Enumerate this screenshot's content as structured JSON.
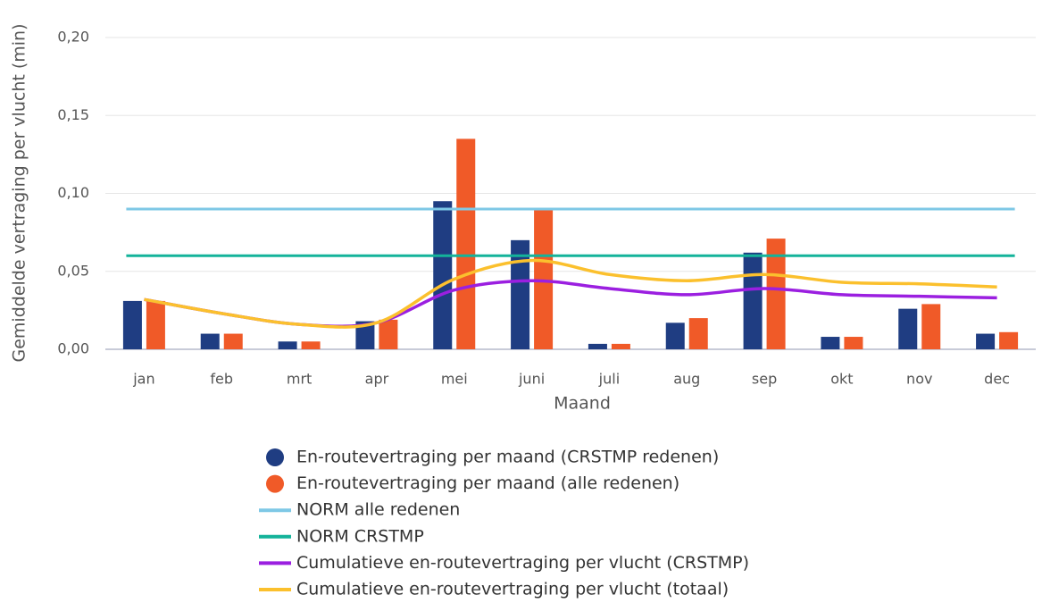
{
  "chart_data": {
    "type": "bar",
    "x_label": "Maand",
    "y_label": "Gemiddelde vertraging per vlucht (min)",
    "categories": [
      "jan",
      "feb",
      "mrt",
      "apr",
      "mei",
      "juni",
      "juli",
      "aug",
      "sep",
      "okt",
      "nov",
      "dec"
    ],
    "ylim": [
      0,
      0.2
    ],
    "yticks": [
      {
        "value": 0,
        "label": "0,00"
      },
      {
        "value": 0.05,
        "label": "0,05"
      },
      {
        "value": 0.1,
        "label": "0,10"
      },
      {
        "value": 0.15,
        "label": "0,15"
      },
      {
        "value": 0.2,
        "label": "0,20"
      }
    ],
    "grid": true,
    "series": [
      {
        "name": "En-routevertraging per maand (CRSTMP redenen)",
        "type": "bar",
        "color": "#1f3d82",
        "values": [
          0.031,
          0.01,
          0.005,
          0.018,
          0.095,
          0.07,
          0.0035,
          0.017,
          0.062,
          0.008,
          0.026,
          0.01
        ]
      },
      {
        "name": "En-routevertraging per maand (alle redenen)",
        "type": "bar",
        "color": "#f05a28",
        "values": [
          0.031,
          0.01,
          0.005,
          0.019,
          0.135,
          0.09,
          0.0035,
          0.02,
          0.071,
          0.008,
          0.029,
          0.011
        ]
      },
      {
        "name": "NORM alle redenen",
        "type": "hline",
        "color": "#7ec8e6",
        "value": 0.09
      },
      {
        "name": "NORM CRSTMP",
        "type": "hline",
        "color": "#14b39a",
        "value": 0.06
      },
      {
        "name": "Cumulatieve en-routevertraging per vlucht (CRSTMP)",
        "type": "line",
        "color": "#9b1fe0",
        "values": [
          0.032,
          0.023,
          0.016,
          0.017,
          0.038,
          0.044,
          0.039,
          0.035,
          0.039,
          0.035,
          0.034,
          0.033
        ]
      },
      {
        "name": "Cumulatieve en-routevertraging per vlucht (totaal)",
        "type": "line",
        "color": "#fbc02d",
        "values": [
          0.032,
          0.023,
          0.016,
          0.017,
          0.045,
          0.057,
          0.048,
          0.044,
          0.048,
          0.043,
          0.042,
          0.04
        ]
      }
    ]
  }
}
